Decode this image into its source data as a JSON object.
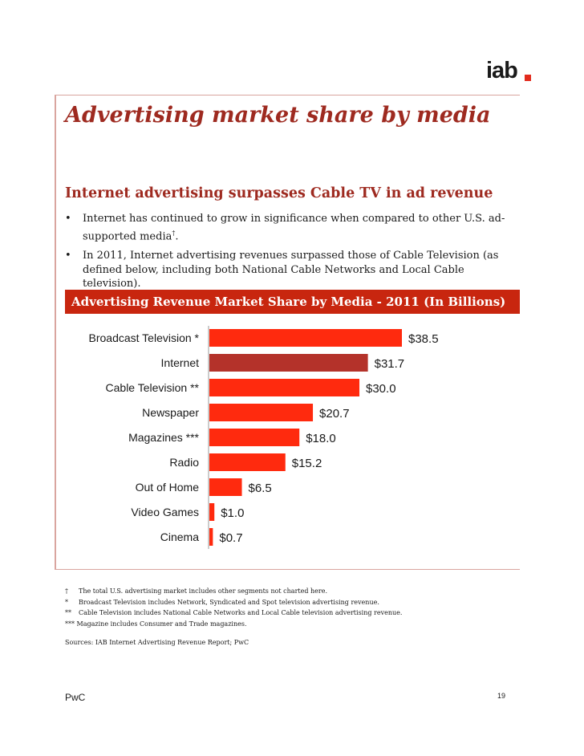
{
  "header": {
    "logo_text": "iab",
    "accent": "#e22b1d"
  },
  "page": {
    "title": "Advertising market share by media",
    "subtitle": "Internet advertising surpasses Cable TV in ad revenue",
    "bullets": [
      {
        "text": "Internet has continued to grow in significance when compared to other U.S. ad-supported media",
        "mark": "†",
        "tail": "."
      },
      {
        "text": "In 2011, Internet advertising revenues surpassed those of Cable Television (as defined below, including both National Cable Networks and Local Cable television).",
        "mark": "",
        "tail": ""
      }
    ],
    "bullet_symbol": "•"
  },
  "chart_data": {
    "type": "bar",
    "orientation": "horizontal",
    "title": "Advertising Revenue Market Share by Media - 2011 (In Billions)",
    "categories": [
      "Broadcast Television *",
      "Internet",
      "Cable Television **",
      "Newspaper",
      "Magazines ***",
      "Radio",
      "Out of Home",
      "Video Games",
      "Cinema"
    ],
    "values": [
      38.5,
      31.7,
      30.0,
      20.7,
      18.0,
      15.2,
      6.5,
      1.0,
      0.7
    ],
    "value_labels": [
      "$38.5",
      "$31.7",
      "$30.0",
      "$20.7",
      "$18.0",
      "$15.2",
      "$6.5",
      "$1.0",
      "$0.7"
    ],
    "highlight_index": 1,
    "colors": {
      "bar": "#ff2a0e",
      "highlight": "#b4322a",
      "title_bg": "#c8260f"
    },
    "xlabel": "",
    "ylabel": "",
    "grid": false,
    "legend": "none"
  },
  "footnotes": [
    {
      "mark": "†",
      "text": "The total U.S. advertising market includes other segments not charted here."
    },
    {
      "mark": "*",
      "text": "Broadcast Television includes Network, Syndicated and Spot television advertising revenue."
    },
    {
      "mark": "**",
      "text": "Cable Television includes National Cable Networks and Local Cable television advertising revenue."
    },
    {
      "mark": "***",
      "text": "Magazine includes Consumer and Trade magazines."
    }
  ],
  "sources": "Sources: IAB Internet Advertising Revenue Report; PwC",
  "footer": {
    "left": "PwC",
    "page_number": "19"
  }
}
